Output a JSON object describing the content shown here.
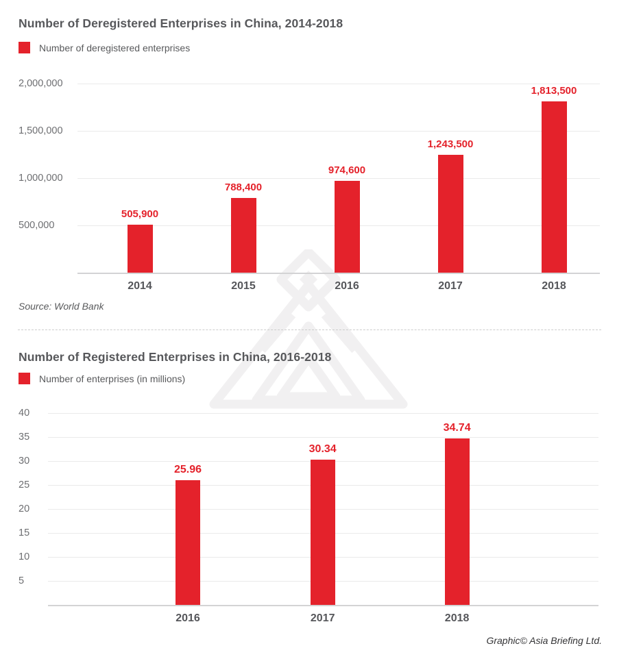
{
  "colors": {
    "bar_red": "#e4222b",
    "title_gray": "#57585b",
    "axis_gray": "#6d6e71"
  },
  "footer": {
    "credit": "Graphic© Asia Briefing Ltd."
  },
  "watermark": {
    "name": "asia-briefing-logo-watermark"
  },
  "chart_data": [
    {
      "type": "bar",
      "title": "Number of Deregistered Enterprises in China, 2014-2018",
      "legend": [
        {
          "label": "Number of deregistered enterprises",
          "color": "#e4222b"
        }
      ],
      "legend_position": "top-left",
      "source": "Source: World Bank",
      "categories": [
        "2014",
        "2015",
        "2016",
        "2017",
        "2018"
      ],
      "values": [
        505900,
        788400,
        974600,
        1243500,
        1813500
      ],
      "value_labels": [
        "505,900",
        "788,400",
        "974,600",
        "1,243,500",
        "1,813,500"
      ],
      "y_ticks": [
        {
          "label": "2,000,000",
          "value": 2000000
        },
        {
          "label": "1,500,000",
          "value": 1500000
        },
        {
          "label": "1,000,000",
          "value": 1000000
        },
        {
          "label": "500,000",
          "value": 500000
        }
      ],
      "ylim": [
        0,
        2000000
      ],
      "grid": true,
      "xlabel": "",
      "ylabel": ""
    },
    {
      "type": "bar",
      "title": "Number of Registered Enterprises in China, 2016-2018",
      "legend": [
        {
          "label": "Number of enterprises (in millions)",
          "color": "#e4222b"
        }
      ],
      "legend_position": "top-left",
      "source": "",
      "categories": [
        "2016",
        "2017",
        "2018"
      ],
      "values": [
        25.96,
        30.34,
        34.74
      ],
      "value_labels": [
        "25.96",
        "30.34",
        "34.74"
      ],
      "y_ticks": [
        {
          "label": "40",
          "value": 40
        },
        {
          "label": "35",
          "value": 35
        },
        {
          "label": "30",
          "value": 30
        },
        {
          "label": "25",
          "value": 25
        },
        {
          "label": "20",
          "value": 20
        },
        {
          "label": "15",
          "value": 15
        },
        {
          "label": "10",
          "value": 10
        },
        {
          "label": "5",
          "value": 5
        }
      ],
      "ylim": [
        0,
        40
      ],
      "grid": true,
      "xlabel": "",
      "ylabel": ""
    }
  ]
}
